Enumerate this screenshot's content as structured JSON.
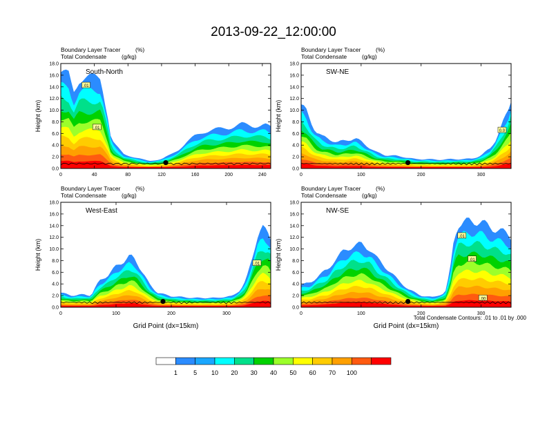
{
  "title": "2013-09-22_12:00:00",
  "panel_header": {
    "line1_label": "Boundary Layer Tracer",
    "line1_unit": "(%)",
    "line2_label": "Total Condensate",
    "line2_unit": "(g/kg)"
  },
  "ylabel": "Height (km)",
  "xlabel": "Grid Point (dx=15km)",
  "contour_note": "Total Condensate Contours: .01 to .01 by .000",
  "colorbar": {
    "labels": [
      "1",
      "5",
      "10",
      "20",
      "30",
      "40",
      "50",
      "60",
      "70",
      "100"
    ],
    "colors": [
      "#ffffff",
      "#2b8cff",
      "#1aa7ff",
      "#00ffff",
      "#00e08a",
      "#00d200",
      "#9cff2a",
      "#ffff00",
      "#ffcc00",
      "#ffa000",
      "#ff5a10",
      "#ff0000"
    ]
  },
  "colors": {
    "contour": "#000000",
    "dot": "#000000"
  },
  "chart_data": [
    {
      "type": "heatmap",
      "title": "South-North",
      "ylabel": "Height (km)",
      "xlabel": "",
      "xlim": [
        0,
        250
      ],
      "ylim": [
        0,
        18
      ],
      "xticks": [
        0,
        40,
        80,
        120,
        160,
        200,
        240
      ],
      "yticks": [
        "0.0",
        "2.0",
        "4.0",
        "6.0",
        "8.0",
        "10.0",
        "12.0",
        "14.0",
        "16.0",
        "18.0"
      ],
      "contour_labels": [
        {
          "text": ".01",
          "x": 30,
          "y": 14.2
        },
        {
          "text": ".01",
          "x": 43,
          "y": 7.0
        }
      ],
      "marker": {
        "x": 125,
        "y": 1.0
      },
      "tops_km": [
        [
          0,
          16.5
        ],
        [
          10,
          16
        ],
        [
          15,
          13
        ],
        [
          22,
          15.3
        ],
        [
          28,
          15.6
        ],
        [
          40,
          15.6
        ],
        [
          48,
          15.6
        ],
        [
          52,
          12
        ],
        [
          55,
          10
        ],
        [
          60,
          5
        ],
        [
          65,
          4
        ],
        [
          75,
          2.5
        ],
        [
          90,
          1.8
        ],
        [
          105,
          1.3
        ],
        [
          120,
          1.6
        ],
        [
          130,
          2.3
        ],
        [
          140,
          3.2
        ],
        [
          150,
          4.5
        ],
        [
          160,
          5.6
        ],
        [
          170,
          6.3
        ],
        [
          180,
          6.6
        ],
        [
          200,
          7.0
        ],
        [
          215,
          7.6
        ],
        [
          230,
          7.3
        ],
        [
          243,
          7.5
        ],
        [
          250,
          7.0
        ]
      ]
    },
    {
      "type": "heatmap",
      "title": "SW-NE",
      "ylabel": "Height (km)",
      "xlabel": "",
      "xlim": [
        0,
        350
      ],
      "ylim": [
        0,
        18
      ],
      "xticks": [
        0,
        100,
        200,
        300
      ],
      "yticks": [
        "0.0",
        "2.0",
        "4.0",
        "6.0",
        "8.0",
        "10.0",
        "12.0",
        "14.0",
        "16.0",
        "18.0"
      ],
      "contour_labels": [
        {
          "text": "0.0",
          "x": 335,
          "y": 6.5
        }
      ],
      "marker": {
        "x": 178,
        "y": 1.0
      },
      "tops_km": [
        [
          0,
          11
        ],
        [
          8,
          10
        ],
        [
          16,
          8
        ],
        [
          24,
          6.5
        ],
        [
          35,
          5.5
        ],
        [
          48,
          5
        ],
        [
          60,
          4.5
        ],
        [
          75,
          4.8
        ],
        [
          90,
          5.2
        ],
        [
          100,
          4.6
        ],
        [
          115,
          3.5
        ],
        [
          125,
          2.8
        ],
        [
          140,
          2.3
        ],
        [
          155,
          2.2
        ],
        [
          170,
          2.0
        ],
        [
          190,
          1.6
        ],
        [
          210,
          1.6
        ],
        [
          230,
          1.5
        ],
        [
          250,
          1.6
        ],
        [
          270,
          1.6
        ],
        [
          285,
          1.7
        ],
        [
          300,
          2.2
        ],
        [
          315,
          3.5
        ],
        [
          325,
          5
        ],
        [
          335,
          7.5
        ],
        [
          345,
          10
        ],
        [
          350,
          12
        ]
      ]
    },
    {
      "type": "heatmap",
      "title": "West-East",
      "ylabel": "Height (km)",
      "xlabel": "Grid Point (dx=15km)",
      "xlim": [
        0,
        380
      ],
      "ylim": [
        0,
        18
      ],
      "xticks": [
        0,
        100,
        200,
        300
      ],
      "yticks": [
        "0.0",
        "2.0",
        "4.0",
        "6.0",
        "8.0",
        "10.0",
        "12.0",
        "14.0",
        "16.0",
        "18.0"
      ],
      "contour_labels": [
        {
          "text": ".01",
          "x": 355,
          "y": 7.5
        }
      ],
      "marker": {
        "x": 185,
        "y": 1.0
      },
      "tops_km": [
        [
          0,
          2.5
        ],
        [
          20,
          2.0
        ],
        [
          40,
          2.2
        ],
        [
          55,
          2.0
        ],
        [
          60,
          3.0
        ],
        [
          70,
          4.5
        ],
        [
          85,
          5.5
        ],
        [
          100,
          7.0
        ],
        [
          115,
          8.0
        ],
        [
          125,
          8.8
        ],
        [
          135,
          8.2
        ],
        [
          145,
          6.5
        ],
        [
          160,
          4.0
        ],
        [
          175,
          2.5
        ],
        [
          200,
          1.9
        ],
        [
          240,
          1.6
        ],
        [
          280,
          1.6
        ],
        [
          310,
          1.9
        ],
        [
          325,
          3.0
        ],
        [
          335,
          4.5
        ],
        [
          345,
          8.0
        ],
        [
          355,
          12.0
        ],
        [
          365,
          13.5
        ],
        [
          375,
          13.0
        ],
        [
          380,
          12.0
        ]
      ]
    },
    {
      "type": "heatmap",
      "title": "NW-SE",
      "ylabel": "Height (km)",
      "xlabel": "Grid Point (dx=15km)",
      "xlim": [
        0,
        350
      ],
      "ylim": [
        0,
        18
      ],
      "xticks": [
        0,
        100,
        200,
        300
      ],
      "yticks": [
        "0.0",
        "2.0",
        "4.0",
        "6.0",
        "8.0",
        "10.0",
        "12.0",
        "14.0",
        "16.0",
        "18.0"
      ],
      "contour_labels": [
        {
          "text": ".01",
          "x": 268,
          "y": 12.2
        },
        {
          "text": ".01",
          "x": 285,
          "y": 8.2
        },
        {
          "text": ".00",
          "x": 303,
          "y": 1.5
        }
      ],
      "marker": {
        "x": 178,
        "y": 1.0
      },
      "tops_km": [
        [
          0,
          3.8
        ],
        [
          15,
          4.2
        ],
        [
          30,
          5.5
        ],
        [
          45,
          6.5
        ],
        [
          55,
          8.0
        ],
        [
          70,
          9.5
        ],
        [
          85,
          10.5
        ],
        [
          100,
          10.8
        ],
        [
          115,
          10.0
        ],
        [
          125,
          8.5
        ],
        [
          140,
          7.0
        ],
        [
          160,
          4.8
        ],
        [
          180,
          3.0
        ],
        [
          200,
          2.0
        ],
        [
          220,
          1.7
        ],
        [
          240,
          2.5
        ],
        [
          248,
          6
        ],
        [
          255,
          12
        ],
        [
          262,
          14.2
        ],
        [
          280,
          14.8
        ],
        [
          300,
          14.6
        ],
        [
          320,
          13.5
        ],
        [
          335,
          13.0
        ],
        [
          345,
          12.5
        ],
        [
          350,
          12
        ]
      ]
    }
  ]
}
